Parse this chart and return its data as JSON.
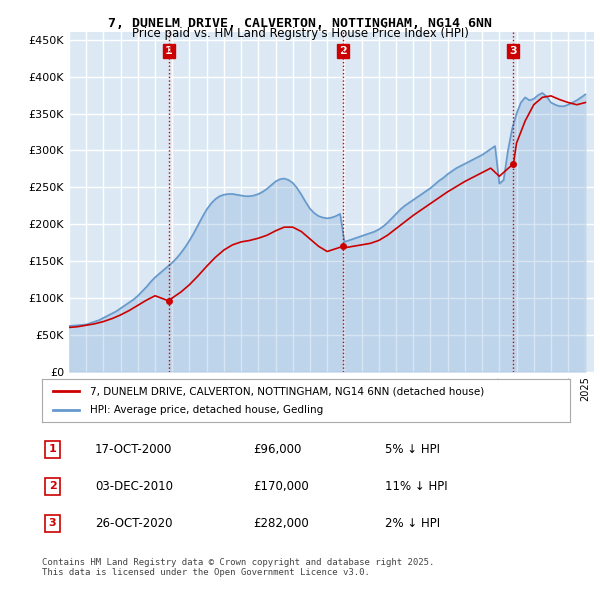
{
  "title": "7, DUNELM DRIVE, CALVERTON, NOTTINGHAM, NG14 6NN",
  "subtitle": "Price paid vs. HM Land Registry's House Price Index (HPI)",
  "ylabel_ticks": [
    "£0",
    "£50K",
    "£100K",
    "£150K",
    "£200K",
    "£250K",
    "£300K",
    "£350K",
    "£400K",
    "£450K"
  ],
  "ytick_values": [
    0,
    50000,
    100000,
    150000,
    200000,
    250000,
    300000,
    350000,
    400000,
    450000
  ],
  "ylim": [
    0,
    460000
  ],
  "xlim_start": 1995.0,
  "xlim_end": 2025.5,
  "background_color": "#dce9f5",
  "plot_bg_color": "#dce9f5",
  "grid_color": "#ffffff",
  "line_color_property": "#cc0000",
  "line_color_hpi": "#6699cc",
  "purchase_dates": [
    2000.79,
    2010.92,
    2020.82
  ],
  "purchase_prices": [
    96000,
    170000,
    282000
  ],
  "purchase_labels": [
    "1",
    "2",
    "3"
  ],
  "vline_color": "#cc0000",
  "vline_style": ":",
  "legend_label_property": "7, DUNELM DRIVE, CALVERTON, NOTTINGHAM, NG14 6NN (detached house)",
  "legend_label_hpi": "HPI: Average price, detached house, Gedling",
  "table_entries": [
    {
      "num": "1",
      "date": "17-OCT-2000",
      "price": "£96,000",
      "pct": "5% ↓ HPI"
    },
    {
      "num": "2",
      "date": "03-DEC-2010",
      "price": "£170,000",
      "pct": "11% ↓ HPI"
    },
    {
      "num": "3",
      "date": "26-OCT-2020",
      "price": "£282,000",
      "pct": "2% ↓ HPI"
    }
  ],
  "footer": "Contains HM Land Registry data © Crown copyright and database right 2025.\nThis data is licensed under the Open Government Licence v3.0.",
  "hpi_x": [
    1995.0,
    1995.25,
    1995.5,
    1995.75,
    1996.0,
    1996.25,
    1996.5,
    1996.75,
    1997.0,
    1997.25,
    1997.5,
    1997.75,
    1998.0,
    1998.25,
    1998.5,
    1998.75,
    1999.0,
    1999.25,
    1999.5,
    1999.75,
    2000.0,
    2000.25,
    2000.5,
    2000.75,
    2001.0,
    2001.25,
    2001.5,
    2001.75,
    2002.0,
    2002.25,
    2002.5,
    2002.75,
    2003.0,
    2003.25,
    2003.5,
    2003.75,
    2004.0,
    2004.25,
    2004.5,
    2004.75,
    2005.0,
    2005.25,
    2005.5,
    2005.75,
    2006.0,
    2006.25,
    2006.5,
    2006.75,
    2007.0,
    2007.25,
    2007.5,
    2007.75,
    2008.0,
    2008.25,
    2008.5,
    2008.75,
    2009.0,
    2009.25,
    2009.5,
    2009.75,
    2010.0,
    2010.25,
    2010.5,
    2010.75,
    2011.0,
    2011.25,
    2011.5,
    2011.75,
    2012.0,
    2012.25,
    2012.5,
    2012.75,
    2013.0,
    2013.25,
    2013.5,
    2013.75,
    2014.0,
    2014.25,
    2014.5,
    2014.75,
    2015.0,
    2015.25,
    2015.5,
    2015.75,
    2016.0,
    2016.25,
    2016.5,
    2016.75,
    2017.0,
    2017.25,
    2017.5,
    2017.75,
    2018.0,
    2018.25,
    2018.5,
    2018.75,
    2019.0,
    2019.25,
    2019.5,
    2019.75,
    2020.0,
    2020.25,
    2020.5,
    2020.75,
    2021.0,
    2021.25,
    2021.5,
    2021.75,
    2022.0,
    2022.25,
    2022.5,
    2022.75,
    2023.0,
    2023.25,
    2023.5,
    2023.75,
    2024.0,
    2024.25,
    2024.5,
    2024.75,
    2025.0
  ],
  "hpi_y": [
    62000,
    62500,
    63000,
    63500,
    64000,
    66000,
    68000,
    70000,
    73000,
    76000,
    79000,
    82000,
    86000,
    90000,
    94000,
    98000,
    103000,
    109000,
    115000,
    122000,
    128000,
    133000,
    138000,
    143000,
    148000,
    154000,
    161000,
    169000,
    178000,
    188000,
    199000,
    210000,
    220000,
    228000,
    234000,
    238000,
    240000,
    241000,
    241000,
    240000,
    239000,
    238000,
    238000,
    239000,
    241000,
    244000,
    248000,
    253000,
    258000,
    261000,
    262000,
    260000,
    256000,
    249000,
    240000,
    230000,
    221000,
    215000,
    211000,
    209000,
    208000,
    209000,
    211000,
    214000,
    176000,
    178000,
    180000,
    182000,
    184000,
    186000,
    188000,
    190000,
    193000,
    197000,
    202000,
    208000,
    214000,
    220000,
    225000,
    229000,
    233000,
    237000,
    241000,
    245000,
    249000,
    254000,
    259000,
    263000,
    268000,
    272000,
    276000,
    279000,
    282000,
    285000,
    288000,
    291000,
    294000,
    298000,
    302000,
    306000,
    255000,
    260000,
    300000,
    330000,
    350000,
    365000,
    372000,
    368000,
    370000,
    375000,
    378000,
    373000,
    365000,
    362000,
    360000,
    360000,
    362000,
    365000,
    368000,
    372000,
    376000
  ],
  "prop_x": [
    1995.0,
    1995.5,
    1996.0,
    1996.5,
    1997.0,
    1997.5,
    1998.0,
    1998.5,
    1999.0,
    1999.5,
    2000.0,
    2000.79,
    2001.0,
    2001.5,
    2002.0,
    2002.5,
    2003.0,
    2003.5,
    2004.0,
    2004.5,
    2005.0,
    2005.5,
    2006.0,
    2006.5,
    2007.0,
    2007.5,
    2008.0,
    2008.5,
    2009.0,
    2009.5,
    2010.0,
    2010.92,
    2011.0,
    2011.5,
    2012.0,
    2012.5,
    2013.0,
    2013.5,
    2014.0,
    2014.5,
    2015.0,
    2015.5,
    2016.0,
    2016.5,
    2017.0,
    2017.5,
    2018.0,
    2018.5,
    2019.0,
    2019.5,
    2020.0,
    2020.82,
    2021.0,
    2021.5,
    2022.0,
    2022.5,
    2023.0,
    2023.5,
    2024.0,
    2024.5,
    2025.0
  ],
  "prop_y": [
    60000,
    61000,
    63000,
    65000,
    68000,
    72000,
    77000,
    83000,
    90000,
    97000,
    103000,
    96000,
    100000,
    108000,
    118000,
    130000,
    143000,
    155000,
    165000,
    172000,
    176000,
    178000,
    181000,
    185000,
    191000,
    196000,
    196000,
    190000,
    180000,
    170000,
    163000,
    170000,
    168000,
    170000,
    172000,
    174000,
    178000,
    185000,
    194000,
    203000,
    212000,
    220000,
    228000,
    236000,
    244000,
    251000,
    258000,
    264000,
    270000,
    276000,
    265000,
    282000,
    310000,
    340000,
    362000,
    372000,
    374000,
    369000,
    365000,
    362000,
    365000
  ]
}
